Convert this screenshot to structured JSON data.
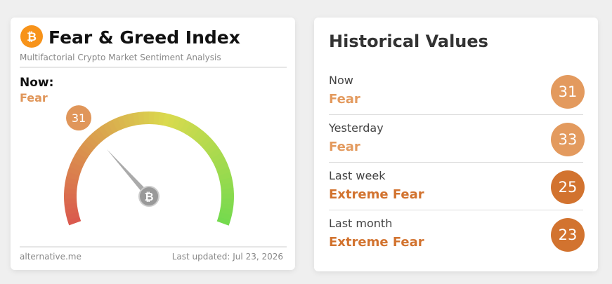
{
  "gauge": {
    "title": "Fear & Greed Index",
    "subtitle": "Multifactorial Crypto Market Sentiment Analysis",
    "now_label": "Now:",
    "classification": "Fear",
    "value": 31,
    "range": [
      0,
      100
    ],
    "color": "#e0965a",
    "source": "alternative.me",
    "updated": "Last updated: Jul 23, 2026"
  },
  "historical": {
    "title": "Historical Values",
    "rows": [
      {
        "label": "Now",
        "classification": "Fear",
        "value": 31,
        "color": "#e39a5e"
      },
      {
        "label": "Yesterday",
        "classification": "Fear",
        "value": 33,
        "color": "#e39a5e"
      },
      {
        "label": "Last week",
        "classification": "Extreme Fear",
        "value": 25,
        "color": "#d2732f"
      },
      {
        "label": "Last month",
        "classification": "Extreme Fear",
        "value": 23,
        "color": "#d2732f"
      }
    ]
  }
}
